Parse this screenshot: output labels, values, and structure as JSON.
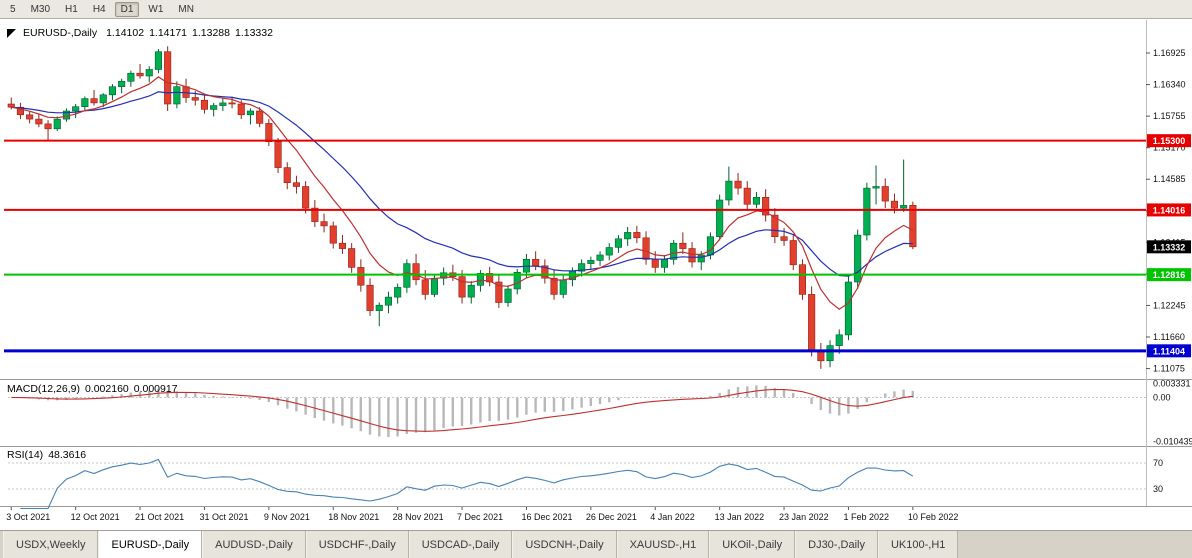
{
  "toolbar": {
    "timeframes": [
      {
        "label": "5",
        "active": false
      },
      {
        "label": "M30",
        "active": false
      },
      {
        "label": "H1",
        "active": false
      },
      {
        "label": "H4",
        "active": false
      },
      {
        "label": "D1",
        "active": true
      },
      {
        "label": "W1",
        "active": false
      },
      {
        "label": "MN",
        "active": false
      }
    ]
  },
  "chart_data": {
    "type": "candlestick",
    "symbol": "EURUSD-,Daily",
    "ohlc_readout": {
      "open": "1.14102",
      "high": "1.14171",
      "low": "1.13288",
      "close": "1.13332"
    },
    "x_labels": [
      "3 Oct 2021",
      "12 Oct 2021",
      "21 Oct 2021",
      "31 Oct 2021",
      "9 Nov 2021",
      "18 Nov 2021",
      "28 Nov 2021",
      "7 Dec 2021",
      "16 Dec 2021",
      "26 Dec 2021",
      "4 Jan 2022",
      "13 Jan 2022",
      "23 Jan 2022",
      "1 Feb 2022",
      "10 Feb 2022"
    ],
    "y_axis": {
      "price_min": 1.109,
      "price_max": 1.175,
      "ticks": [
        "1.16925",
        "1.16340",
        "1.15755",
        "1.15170",
        "1.14585",
        "1.14000",
        "1.13415",
        "1.12830",
        "1.12245",
        "1.11660",
        "1.11075"
      ]
    },
    "hlines": [
      {
        "price": 1.153,
        "label": "1.15300",
        "color": "#e60000",
        "width": 2
      },
      {
        "price": 1.14016,
        "label": "1.14016",
        "color": "#e60000",
        "width": 2
      },
      {
        "price": 1.12816,
        "label": "1.12816",
        "color": "#00c400",
        "width": 2
      },
      {
        "price": 1.11404,
        "label": "1.11404",
        "color": "#0000d0",
        "width": 3
      }
    ],
    "current_price": {
      "value": 1.13332,
      "label": "1.13332",
      "bg": "#000000"
    },
    "moving_averages": [
      {
        "name": "slow-ma",
        "period": 20,
        "color": "#2330b4"
      },
      {
        "name": "fast-ma",
        "period": 8,
        "color": "#c03030"
      }
    ],
    "indicators": {
      "macd": {
        "name": "MACD(12,26,9)",
        "values": [
          "0.002160",
          "0.000917"
        ],
        "axis_labels": [
          "0.003331",
          "0.00",
          "-0.010439"
        ],
        "hist_color": "#b8b8b8",
        "signal_color": "#c03030"
      },
      "rsi": {
        "name": "RSI(14)",
        "value": "48.3616",
        "levels": [
          "70",
          "30"
        ],
        "color": "#4682b4"
      }
    },
    "candle_colors": {
      "up": "#00b050",
      "up_stroke": "#006030",
      "down": "#e2402c",
      "down_stroke": "#8e241a"
    },
    "candles_ohlc": [
      [
        1.1598,
        1.161,
        1.1588,
        1.1592
      ],
      [
        1.1592,
        1.16,
        1.157,
        1.1578
      ],
      [
        1.1578,
        1.1585,
        1.1562,
        1.157
      ],
      [
        1.157,
        1.158,
        1.1555,
        1.1561
      ],
      [
        1.1561,
        1.1568,
        1.1529,
        1.1552
      ],
      [
        1.1552,
        1.1575,
        1.1548,
        1.157
      ],
      [
        1.157,
        1.159,
        1.1565,
        1.1585
      ],
      [
        1.1585,
        1.1598,
        1.1572,
        1.1593
      ],
      [
        1.1593,
        1.1612,
        1.1585,
        1.1608
      ],
      [
        1.1608,
        1.1624,
        1.1595,
        1.16
      ],
      [
        1.16,
        1.1618,
        1.1592,
        1.1615
      ],
      [
        1.1615,
        1.1635,
        1.1605,
        1.163
      ],
      [
        1.163,
        1.1645,
        1.1618,
        1.164
      ],
      [
        1.164,
        1.166,
        1.163,
        1.1655
      ],
      [
        1.1655,
        1.1672,
        1.1645,
        1.165
      ],
      [
        1.165,
        1.1668,
        1.1638,
        1.1662
      ],
      [
        1.1662,
        1.17,
        1.1655,
        1.1695
      ],
      [
        1.1695,
        1.1705,
        1.1585,
        1.1598
      ],
      [
        1.1598,
        1.164,
        1.159,
        1.163
      ],
      [
        1.163,
        1.1645,
        1.16,
        1.161
      ],
      [
        1.161,
        1.1622,
        1.1595,
        1.1605
      ],
      [
        1.1605,
        1.1615,
        1.158,
        1.1588
      ],
      [
        1.1588,
        1.16,
        1.1575,
        1.1595
      ],
      [
        1.1595,
        1.1608,
        1.1585,
        1.16
      ],
      [
        1.16,
        1.1612,
        1.159,
        1.1598
      ],
      [
        1.1598,
        1.1605,
        1.157,
        1.1578
      ],
      [
        1.1578,
        1.159,
        1.156,
        1.1585
      ],
      [
        1.1585,
        1.1592,
        1.1555,
        1.1562
      ],
      [
        1.1562,
        1.157,
        1.152,
        1.1528
      ],
      [
        1.1528,
        1.1535,
        1.147,
        1.148
      ],
      [
        1.148,
        1.149,
        1.144,
        1.1452
      ],
      [
        1.1452,
        1.1465,
        1.1432,
        1.1445
      ],
      [
        1.1445,
        1.1455,
        1.1395,
        1.1405
      ],
      [
        1.1405,
        1.142,
        1.137,
        1.138
      ],
      [
        1.138,
        1.1395,
        1.136,
        1.1372
      ],
      [
        1.1372,
        1.138,
        1.133,
        1.134
      ],
      [
        1.134,
        1.1355,
        1.132,
        1.133
      ],
      [
        1.133,
        1.134,
        1.1285,
        1.1295
      ],
      [
        1.1295,
        1.131,
        1.125,
        1.1262
      ],
      [
        1.1262,
        1.1275,
        1.1205,
        1.1215
      ],
      [
        1.1215,
        1.123,
        1.1186,
        1.1225
      ],
      [
        1.1225,
        1.125,
        1.121,
        1.124
      ],
      [
        1.124,
        1.1265,
        1.1228,
        1.1258
      ],
      [
        1.1258,
        1.131,
        1.1248,
        1.1302
      ],
      [
        1.1302,
        1.132,
        1.1262,
        1.1272
      ],
      [
        1.1272,
        1.129,
        1.1235,
        1.1245
      ],
      [
        1.1245,
        1.1282,
        1.124,
        1.1275
      ],
      [
        1.1275,
        1.1295,
        1.1262,
        1.1285
      ],
      [
        1.1285,
        1.13,
        1.127,
        1.1278
      ],
      [
        1.1278,
        1.129,
        1.1228,
        1.124
      ],
      [
        1.124,
        1.127,
        1.1228,
        1.1262
      ],
      [
        1.1262,
        1.129,
        1.125,
        1.1284
      ],
      [
        1.1284,
        1.1296,
        1.126,
        1.1268
      ],
      [
        1.1268,
        1.128,
        1.122,
        1.123
      ],
      [
        1.123,
        1.1262,
        1.1222,
        1.1255
      ],
      [
        1.1255,
        1.1292,
        1.1245,
        1.1286
      ],
      [
        1.1286,
        1.132,
        1.1275,
        1.131
      ],
      [
        1.131,
        1.1325,
        1.129,
        1.1298
      ],
      [
        1.1298,
        1.131,
        1.1265,
        1.1275
      ],
      [
        1.1275,
        1.129,
        1.1235,
        1.1245
      ],
      [
        1.1245,
        1.128,
        1.1238,
        1.1272
      ],
      [
        1.1272,
        1.1295,
        1.126,
        1.1288
      ],
      [
        1.1288,
        1.131,
        1.1278,
        1.1302
      ],
      [
        1.1302,
        1.1315,
        1.129,
        1.1308
      ],
      [
        1.1308,
        1.1325,
        1.1298,
        1.1318
      ],
      [
        1.1318,
        1.134,
        1.1308,
        1.1332
      ],
      [
        1.1332,
        1.1355,
        1.1322,
        1.1348
      ],
      [
        1.1348,
        1.137,
        1.1335,
        1.136
      ],
      [
        1.136,
        1.1372,
        1.134,
        1.135
      ],
      [
        1.135,
        1.1362,
        1.13,
        1.131
      ],
      [
        1.131,
        1.1325,
        1.1285,
        1.1295
      ],
      [
        1.1295,
        1.1318,
        1.1285,
        1.131
      ],
      [
        1.131,
        1.1346,
        1.13,
        1.134
      ],
      [
        1.134,
        1.136,
        1.132,
        1.133
      ],
      [
        1.133,
        1.1342,
        1.1295,
        1.1305
      ],
      [
        1.1305,
        1.1325,
        1.129,
        1.1318
      ],
      [
        1.1318,
        1.136,
        1.131,
        1.1352
      ],
      [
        1.1352,
        1.143,
        1.1345,
        1.142
      ],
      [
        1.142,
        1.1482,
        1.141,
        1.1455
      ],
      [
        1.1455,
        1.147,
        1.143,
        1.1442
      ],
      [
        1.1442,
        1.1455,
        1.14,
        1.1412
      ],
      [
        1.1412,
        1.1435,
        1.1405,
        1.1425
      ],
      [
        1.1425,
        1.144,
        1.138,
        1.1392
      ],
      [
        1.1392,
        1.1405,
        1.134,
        1.1352
      ],
      [
        1.1352,
        1.1368,
        1.1335,
        1.1345
      ],
      [
        1.1345,
        1.1355,
        1.129,
        1.13
      ],
      [
        1.13,
        1.131,
        1.1235,
        1.1245
      ],
      [
        1.1245,
        1.126,
        1.113,
        1.1142
      ],
      [
        1.1142,
        1.1155,
        1.1107,
        1.1122
      ],
      [
        1.1122,
        1.116,
        1.111,
        1.115
      ],
      [
        1.115,
        1.118,
        1.1135,
        1.117
      ],
      [
        1.117,
        1.128,
        1.116,
        1.1268
      ],
      [
        1.1268,
        1.1365,
        1.1255,
        1.1355
      ],
      [
        1.1355,
        1.1452,
        1.1345,
        1.1442
      ],
      [
        1.1442,
        1.1484,
        1.1412,
        1.1445
      ],
      [
        1.1445,
        1.146,
        1.1405,
        1.1418
      ],
      [
        1.1418,
        1.1432,
        1.1395,
        1.1405
      ],
      [
        1.1405,
        1.1495,
        1.1398,
        1.141
      ],
      [
        1.14102,
        1.14171,
        1.13288,
        1.13332
      ]
    ]
  },
  "tabs": [
    {
      "label": "USDX,Weekly",
      "active": false
    },
    {
      "label": "EURUSD-,Daily",
      "active": true
    },
    {
      "label": "AUDUSD-,Daily",
      "active": false
    },
    {
      "label": "USDCHF-,Daily",
      "active": false
    },
    {
      "label": "USDCAD-,Daily",
      "active": false
    },
    {
      "label": "USDCNH-,Daily",
      "active": false
    },
    {
      "label": "XAUUSD-,H1",
      "active": false
    },
    {
      "label": "UKOil-,Daily",
      "active": false
    },
    {
      "label": "DJ30-,Daily",
      "active": false
    },
    {
      "label": "UK100-,H1",
      "active": false
    }
  ]
}
